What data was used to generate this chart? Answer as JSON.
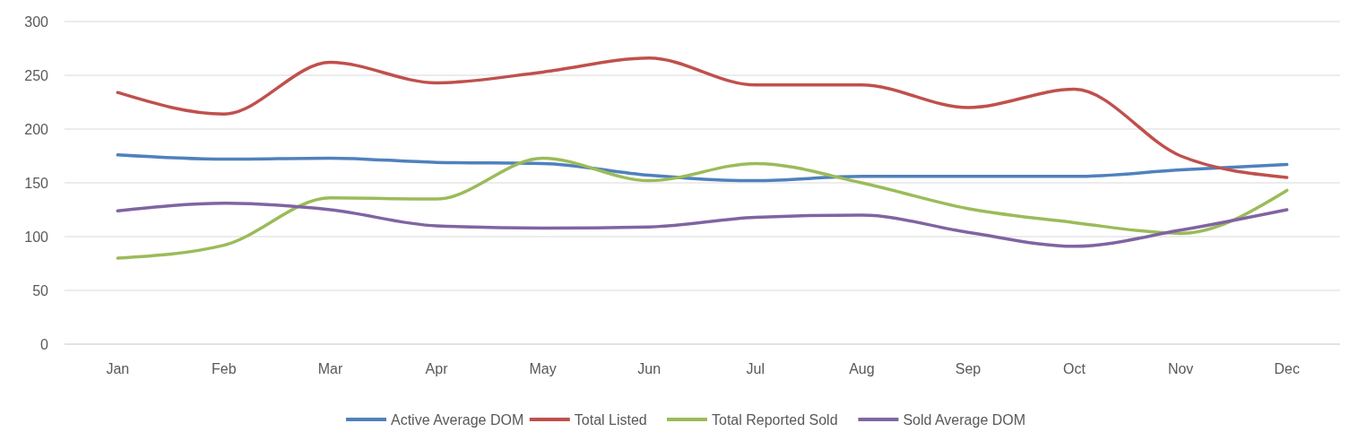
{
  "chart_data": {
    "type": "line",
    "categories": [
      "Jan",
      "Feb",
      "Mar",
      "Apr",
      "May",
      "Jun",
      "Jul",
      "Aug",
      "Sep",
      "Oct",
      "Nov",
      "Dec"
    ],
    "series": [
      {
        "name": "Active Average DOM",
        "color": "#4f81bd",
        "values": [
          176,
          172,
          173,
          169,
          168,
          157,
          152,
          156,
          156,
          156,
          162,
          167
        ]
      },
      {
        "name": "Total Listed",
        "color": "#c0504d",
        "values": [
          234,
          214,
          262,
          243,
          253,
          266,
          241,
          241,
          220,
          237,
          175,
          155
        ]
      },
      {
        "name": "Total Reported Sold",
        "color": "#9bbb59",
        "values": [
          80,
          92,
          136,
          135,
          173,
          152,
          168,
          150,
          126,
          113,
          103,
          143
        ]
      },
      {
        "name": "Sold Average DOM",
        "color": "#8064a2",
        "values": [
          124,
          131,
          125,
          110,
          108,
          109,
          118,
          120,
          104,
          91,
          106,
          125
        ]
      }
    ],
    "ylim": [
      0,
      300
    ],
    "yticks": [
      0,
      50,
      100,
      150,
      200,
      250,
      300
    ],
    "grid": "y",
    "legend": "bottom",
    "marker": "none",
    "line_style": "solid"
  }
}
